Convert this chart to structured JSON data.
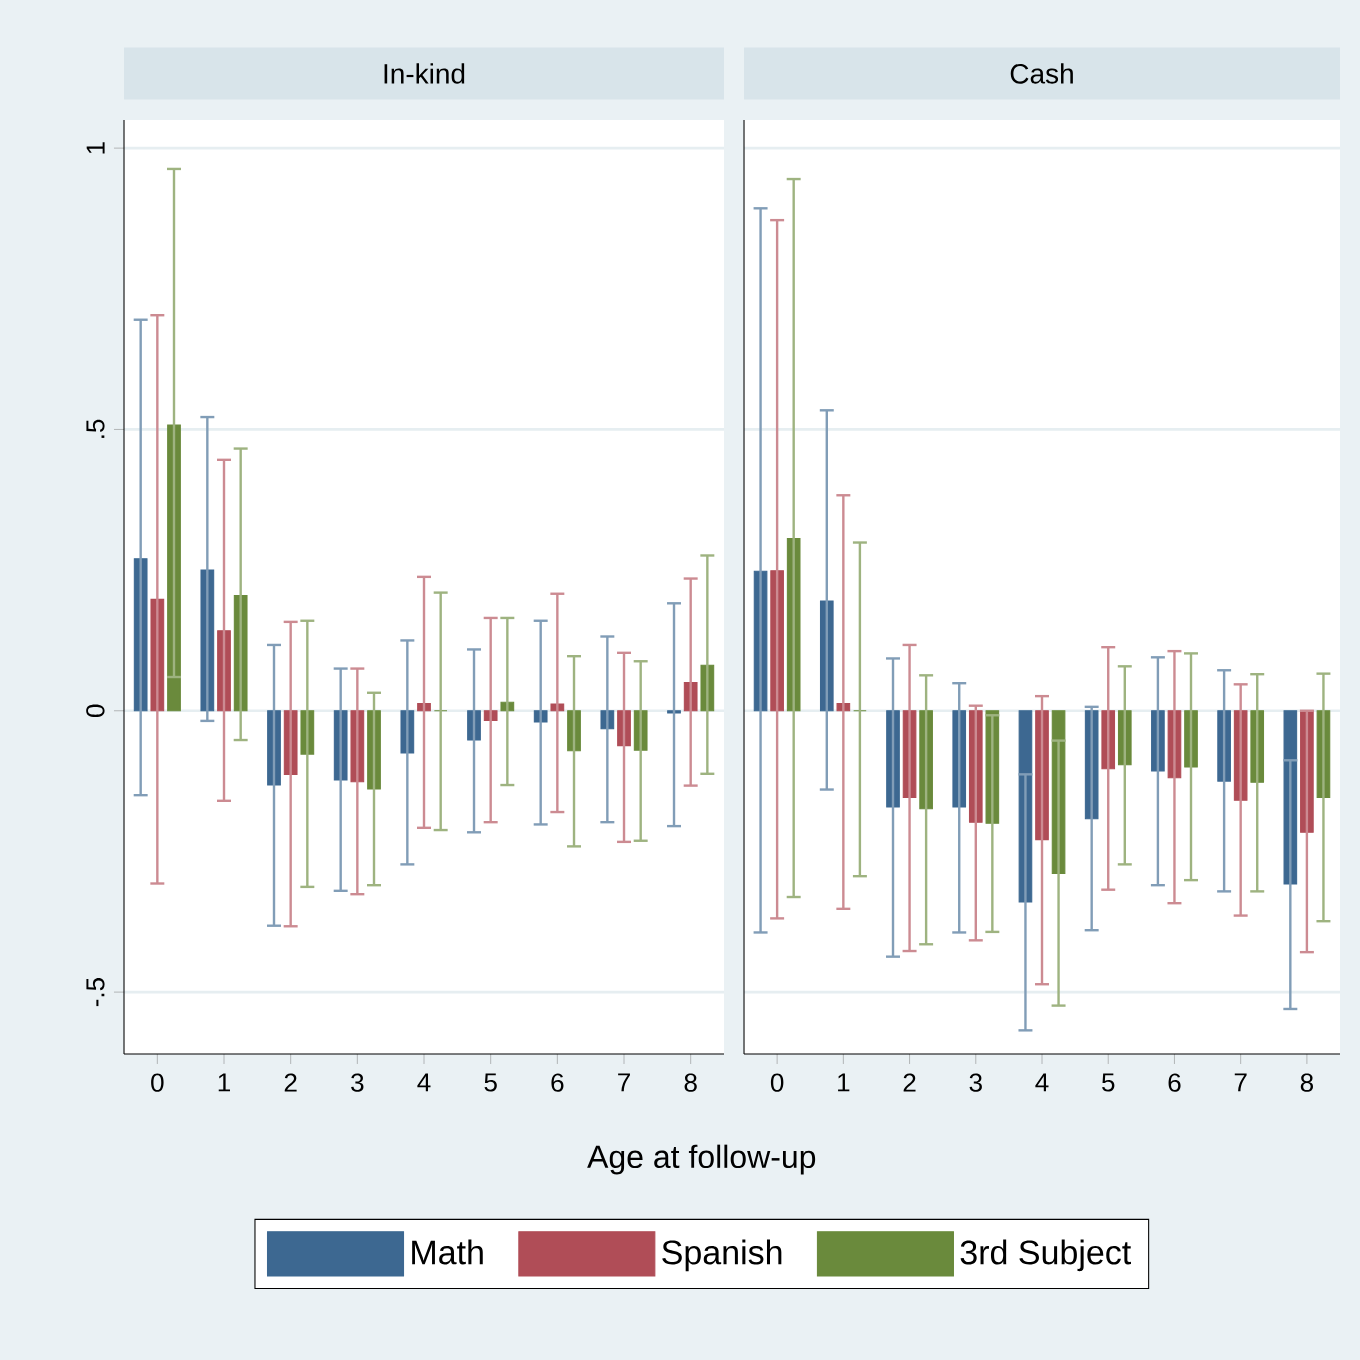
{
  "chart_data": [
    {
      "type": "bar",
      "title": "In-kind",
      "xlabel": "Age at follow-up",
      "categories": [
        "0",
        "1",
        "2",
        "3",
        "4",
        "5",
        "6",
        "7",
        "8"
      ],
      "series": [
        {
          "name": "Math",
          "color": "#3d6891",
          "values": [
            0.27,
            0.25,
            -0.132,
            -0.123,
            -0.075,
            -0.052,
            -0.02,
            -0.032,
            -0.004
          ],
          "errors": [
            [
              -0.15,
              0.695
            ],
            [
              -0.018,
              0.522
            ],
            [
              -0.382,
              0.117
            ],
            [
              -0.32,
              0.075
            ],
            [
              -0.273,
              0.125
            ],
            [
              -0.216,
              0.109
            ],
            [
              -0.202,
              0.16
            ],
            [
              -0.198,
              0.132
            ],
            [
              -0.205,
              0.191
            ]
          ]
        },
        {
          "name": "Spanish",
          "color": "#b04d57",
          "values": [
            0.198,
            0.142,
            -0.113,
            -0.126,
            0.013,
            -0.017,
            0.012,
            -0.062,
            0.05
          ],
          "errors": [
            [
              -0.307,
              0.703
            ],
            [
              -0.16,
              0.446
            ],
            [
              -0.383,
              0.158
            ],
            [
              -0.326,
              0.075
            ],
            [
              -0.208,
              0.238
            ],
            [
              -0.198,
              0.165
            ],
            [
              -0.18,
              0.208
            ],
            [
              -0.233,
              0.103
            ],
            [
              -0.133,
              0.235
            ]
          ]
        },
        {
          "name": "3rd Subject",
          "color": "#6a8a3c",
          "values": [
            0.508,
            0.205,
            -0.077,
            -0.139,
            0.0,
            0.015,
            -0.071,
            -0.07,
            0.081
          ],
          "errors": [
            [
              0.06,
              0.963
            ],
            [
              -0.052,
              0.466
            ],
            [
              -0.313,
              0.16
            ],
            [
              -0.31,
              0.032
            ],
            [
              -0.212,
              0.21
            ],
            [
              -0.132,
              0.165
            ],
            [
              -0.241,
              0.097
            ],
            [
              -0.231,
              0.088
            ],
            [
              -0.112,
              0.276
            ]
          ]
        }
      ],
      "ylim": [
        -0.61,
        1.05
      ],
      "yticks": [
        {
          "value": -0.5,
          "label": "-.5"
        },
        0,
        {
          "value": 0.5,
          "label": ".5"
        },
        1
      ],
      "grid": "y",
      "legend": "bottom"
    },
    {
      "type": "bar",
      "title": "Cash",
      "categories": [
        "0",
        "1",
        "2",
        "3",
        "4",
        "5",
        "6",
        "7",
        "8"
      ],
      "series": [
        {
          "color": "#3d6891",
          "values": [
            0.248,
            0.195,
            -0.171,
            -0.171,
            -0.34,
            -0.192,
            -0.107,
            -0.125,
            -0.308
          ],
          "errors": [
            [
              -0.394,
              0.893
            ],
            [
              -0.14,
              0.534
            ],
            [
              -0.437,
              0.093
            ],
            [
              -0.394,
              0.049
            ],
            [
              -0.568,
              -0.113
            ],
            [
              -0.39,
              0.007
            ],
            [
              -0.31,
              0.095
            ],
            [
              -0.321,
              0.072
            ],
            [
              -0.53,
              -0.088
            ]
          ]
        },
        {
          "color": "#b04d57",
          "values": [
            0.249,
            0.013,
            -0.154,
            -0.198,
            -0.229,
            -0.103,
            -0.119,
            -0.159,
            -0.216
          ],
          "errors": [
            [
              -0.369,
              0.872
            ],
            [
              -0.352,
              0.383
            ],
            [
              -0.427,
              0.117
            ],
            [
              -0.408,
              0.009
            ],
            [
              -0.486,
              0.026
            ],
            [
              -0.318,
              0.113
            ],
            [
              -0.342,
              0.106
            ],
            [
              -0.364,
              0.047
            ],
            [
              -0.429,
              0.0
            ]
          ]
        },
        {
          "color": "#6a8a3c",
          "values": [
            0.306,
            0.0,
            -0.174,
            -0.2,
            -0.289,
            -0.096,
            -0.1,
            -0.127,
            -0.154
          ],
          "errors": [
            [
              -0.331,
              0.945
            ],
            [
              -0.294,
              0.299
            ],
            [
              -0.415,
              0.063
            ],
            [
              -0.393,
              -0.008
            ],
            [
              -0.524,
              -0.053
            ],
            [
              -0.273,
              0.079
            ],
            [
              -0.301,
              0.102
            ],
            [
              -0.321,
              0.065
            ],
            [
              -0.374,
              0.066
            ]
          ]
        }
      ],
      "ylim": [
        -0.61,
        1.05
      ],
      "yticks": [
        {
          "value": -0.5,
          "label": null
        },
        {
          "value": 0,
          "label": null
        },
        {
          "value": 0.5,
          "label": null
        },
        {
          "value": 1,
          "label": null
        }
      ],
      "grid": "y",
      "tick_labels": "x"
    }
  ]
}
